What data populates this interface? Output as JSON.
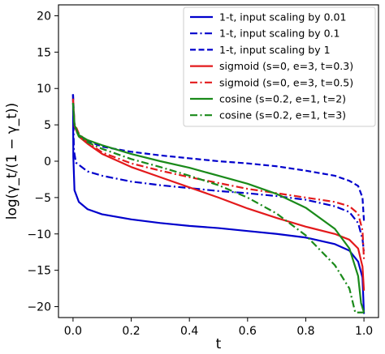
{
  "chart_data": {
    "type": "line",
    "xlabel": "t",
    "ylabel": "log(γ_t/(1 − γ_t))",
    "xlim": [
      -0.05,
      1.05
    ],
    "ylim": [
      -21.5,
      21.5
    ],
    "xticks": [
      0.0,
      0.2,
      0.4,
      0.6,
      0.8,
      1.0
    ],
    "xtick_labels": [
      "0.0",
      "0.2",
      "0.4",
      "0.6",
      "0.8",
      "1.0"
    ],
    "yticks": [
      20,
      15,
      10,
      5,
      0,
      -5,
      -10,
      -15,
      -20
    ],
    "ytick_labels": [
      "20",
      "15",
      "10",
      "5",
      "0",
      "−5",
      "−10",
      "−15",
      "−20"
    ],
    "legend_position": "top-right",
    "grid": false,
    "series": [
      {
        "name": "1-t, input scaling by 0.01",
        "color": "#0000cc",
        "dash": "solid",
        "points": [
          [
            0.0,
            9.2
          ],
          [
            0.001,
            0.6
          ],
          [
            0.005,
            -4.0
          ],
          [
            0.02,
            -5.6
          ],
          [
            0.05,
            -6.6
          ],
          [
            0.1,
            -7.3
          ],
          [
            0.2,
            -8.0
          ],
          [
            0.3,
            -8.5
          ],
          [
            0.4,
            -8.9
          ],
          [
            0.5,
            -9.2
          ],
          [
            0.6,
            -9.6
          ],
          [
            0.7,
            -10.0
          ],
          [
            0.8,
            -10.5
          ],
          [
            0.9,
            -11.4
          ],
          [
            0.95,
            -12.3
          ],
          [
            0.98,
            -13.8
          ],
          [
            0.995,
            -16.0
          ],
          [
            1.0,
            -21.0
          ]
        ]
      },
      {
        "name": "1-t, input scaling by 0.1",
        "color": "#0000cc",
        "dash": "dashdot",
        "points": [
          [
            0.0,
            9.2
          ],
          [
            0.003,
            1.5
          ],
          [
            0.01,
            -0.2
          ],
          [
            0.05,
            -1.4
          ],
          [
            0.1,
            -2.0
          ],
          [
            0.2,
            -2.8
          ],
          [
            0.3,
            -3.3
          ],
          [
            0.4,
            -3.7
          ],
          [
            0.5,
            -4.1
          ],
          [
            0.6,
            -4.4
          ],
          [
            0.7,
            -4.8
          ],
          [
            0.8,
            -5.3
          ],
          [
            0.9,
            -6.2
          ],
          [
            0.95,
            -7.0
          ],
          [
            0.98,
            -8.5
          ],
          [
            0.995,
            -10.7
          ],
          [
            1.0,
            -12.5
          ]
        ]
      },
      {
        "name": "1-t, input scaling by 1",
        "color": "#0000cc",
        "dash": "dashed",
        "points": [
          [
            0.0,
            9.2
          ],
          [
            0.005,
            5.0
          ],
          [
            0.02,
            3.6
          ],
          [
            0.05,
            2.8
          ],
          [
            0.1,
            2.0
          ],
          [
            0.2,
            1.3
          ],
          [
            0.3,
            0.8
          ],
          [
            0.4,
            0.4
          ],
          [
            0.5,
            0.0
          ],
          [
            0.6,
            -0.3
          ],
          [
            0.7,
            -0.7
          ],
          [
            0.8,
            -1.3
          ],
          [
            0.9,
            -2.0
          ],
          [
            0.95,
            -2.7
          ],
          [
            0.98,
            -3.4
          ],
          [
            0.995,
            -5.0
          ],
          [
            1.0,
            -8.2
          ]
        ]
      },
      {
        "name": "sigmoid (s=0, e=3, t=0.3)",
        "color": "#e31a1c",
        "dash": "solid",
        "points": [
          [
            0.0,
            8.4
          ],
          [
            0.005,
            4.8
          ],
          [
            0.02,
            3.4
          ],
          [
            0.05,
            2.4
          ],
          [
            0.1,
            1.0
          ],
          [
            0.2,
            -0.8
          ],
          [
            0.3,
            -2.2
          ],
          [
            0.4,
            -3.6
          ],
          [
            0.5,
            -5.0
          ],
          [
            0.6,
            -6.5
          ],
          [
            0.7,
            -7.8
          ],
          [
            0.8,
            -9.0
          ],
          [
            0.9,
            -10.0
          ],
          [
            0.95,
            -10.8
          ],
          [
            0.98,
            -12.0
          ],
          [
            0.995,
            -14.5
          ],
          [
            1.0,
            -17.8
          ]
        ]
      },
      {
        "name": "sigmoid (s=0, e=3, t=0.5)",
        "color": "#e31a1c",
        "dash": "dashdot",
        "points": [
          [
            0.0,
            8.6
          ],
          [
            0.005,
            5.2
          ],
          [
            0.02,
            3.8
          ],
          [
            0.05,
            2.6
          ],
          [
            0.1,
            1.2
          ],
          [
            0.2,
            -0.3
          ],
          [
            0.3,
            -1.3
          ],
          [
            0.4,
            -2.2
          ],
          [
            0.5,
            -3.0
          ],
          [
            0.6,
            -3.8
          ],
          [
            0.7,
            -4.4
          ],
          [
            0.8,
            -5.0
          ],
          [
            0.9,
            -5.6
          ],
          [
            0.95,
            -6.2
          ],
          [
            0.98,
            -7.2
          ],
          [
            0.995,
            -9.5
          ],
          [
            1.0,
            -13.5
          ]
        ]
      },
      {
        "name": "cosine (s=0.2, e=1, t=2)",
        "color": "#1a8a1a",
        "dash": "solid",
        "points": [
          [
            0.0,
            8.0
          ],
          [
            0.005,
            5.0
          ],
          [
            0.02,
            3.6
          ],
          [
            0.05,
            2.9
          ],
          [
            0.1,
            2.2
          ],
          [
            0.2,
            1.0
          ],
          [
            0.3,
            0.0
          ],
          [
            0.4,
            -0.9
          ],
          [
            0.5,
            -2.0
          ],
          [
            0.6,
            -3.1
          ],
          [
            0.7,
            -4.5
          ],
          [
            0.8,
            -6.4
          ],
          [
            0.9,
            -9.3
          ],
          [
            0.95,
            -12.0
          ],
          [
            0.98,
            -15.8
          ],
          [
            0.99,
            -19.5
          ],
          [
            1.0,
            -20.8
          ]
        ]
      },
      {
        "name": "cosine (s=0.2, e=1, t=3)",
        "color": "#1a8a1a",
        "dash": "dashdot",
        "points": [
          [
            0.0,
            8.0
          ],
          [
            0.005,
            4.8
          ],
          [
            0.02,
            3.4
          ],
          [
            0.05,
            2.6
          ],
          [
            0.1,
            1.7
          ],
          [
            0.2,
            0.3
          ],
          [
            0.3,
            -0.8
          ],
          [
            0.4,
            -2.0
          ],
          [
            0.5,
            -3.3
          ],
          [
            0.6,
            -5.0
          ],
          [
            0.7,
            -7.2
          ],
          [
            0.8,
            -10.2
          ],
          [
            0.9,
            -14.3
          ],
          [
            0.95,
            -17.5
          ],
          [
            0.97,
            -20.8
          ],
          [
            1.0,
            -20.8
          ]
        ]
      }
    ]
  }
}
